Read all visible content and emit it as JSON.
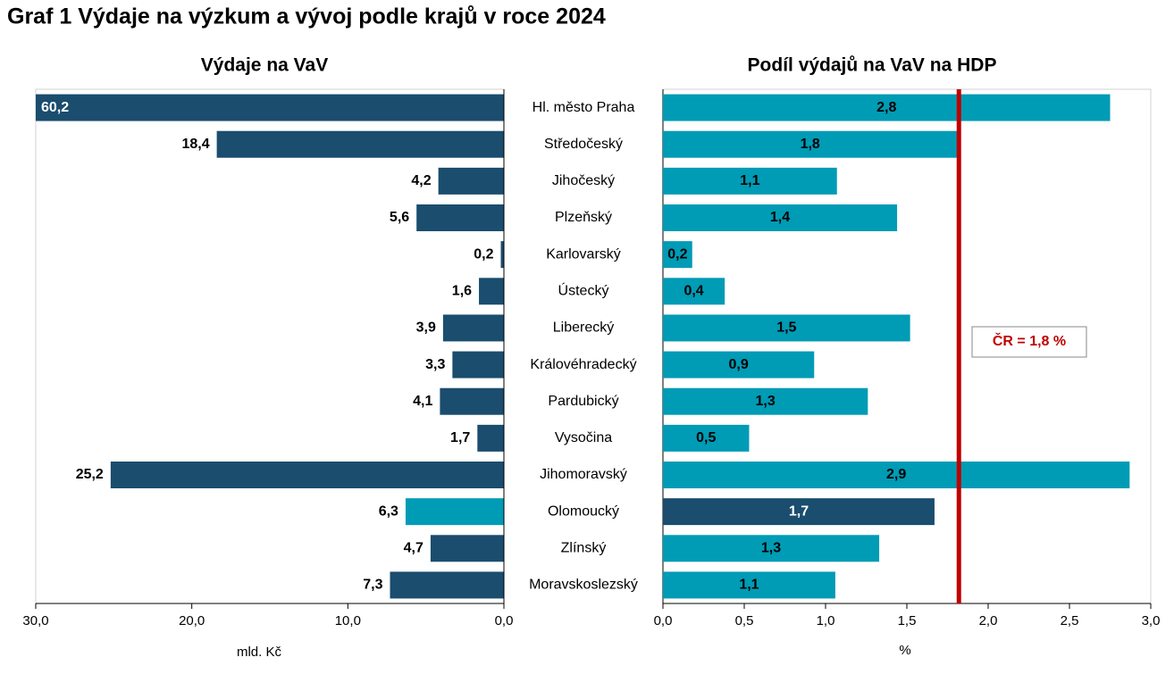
{
  "title": "Graf 1 Výdaje na výzkum a vývoj podle krajů v roce 2024",
  "chart_data": [
    {
      "type": "bar",
      "orientation": "horizontal",
      "reversed": true,
      "title": "Výdaje na VaV",
      "xlabel": "mld. Kč",
      "categories": [
        "Hl. město Praha",
        "Středočeský",
        "Jihočeský",
        "Plzeňský",
        "Karlovarský",
        "Ústecký",
        "Liberecký",
        "Královéhradecký",
        "Pardubický",
        "Vysočina",
        "Jihomoravský",
        "Olomoucký",
        "Zlínský",
        "Moravskoslezský"
      ],
      "values": [
        60.2,
        18.4,
        4.2,
        5.6,
        0.2,
        1.6,
        3.9,
        3.3,
        4.1,
        1.7,
        25.2,
        6.3,
        4.7,
        7.3
      ],
      "value_labels": [
        "60,2",
        "18,4",
        "4,2",
        "5,6",
        "0,2",
        "1,6",
        "3,9",
        "3,3",
        "4,1",
        "1,7",
        "25,2",
        "6,3",
        "4,7",
        "7,3"
      ],
      "colors": [
        "#1a4d6e",
        "#1a4d6e",
        "#1a4d6e",
        "#1a4d6e",
        "#1a4d6e",
        "#1a4d6e",
        "#1a4d6e",
        "#1a4d6e",
        "#1a4d6e",
        "#1a4d6e",
        "#1a4d6e",
        "#009bb5",
        "#1a4d6e",
        "#1a4d6e"
      ],
      "xlim": [
        0,
        30
      ],
      "xticks": [
        {
          "value": 30,
          "label": "30,0"
        },
        {
          "value": 20,
          "label": "20,0"
        },
        {
          "value": 10,
          "label": "10,0"
        },
        {
          "value": 0,
          "label": "0,0"
        }
      ]
    },
    {
      "type": "bar",
      "orientation": "horizontal",
      "title": "Podíl výdajů na VaV na HDP",
      "xlabel": "%",
      "values": [
        2.75,
        1.81,
        1.07,
        1.44,
        0.18,
        0.38,
        1.52,
        0.93,
        1.26,
        0.53,
        2.87,
        1.67,
        1.33,
        1.06
      ],
      "value_labels": [
        "2,8",
        "1,8",
        "1,1",
        "1,4",
        "0,2",
        "0,4",
        "1,5",
        "0,9",
        "1,3",
        "0,5",
        "2,9",
        "1,7",
        "1,3",
        "1,1"
      ],
      "colors": [
        "#009bb5",
        "#009bb5",
        "#009bb5",
        "#009bb5",
        "#009bb5",
        "#009bb5",
        "#009bb5",
        "#009bb5",
        "#009bb5",
        "#009bb5",
        "#009bb5",
        "#1a4d6e",
        "#009bb5",
        "#009bb5"
      ],
      "xlim": [
        0,
        3
      ],
      "xticks": [
        {
          "value": 0,
          "label": "0,0"
        },
        {
          "value": 0.5,
          "label": "0,5"
        },
        {
          "value": 1,
          "label": "1,0"
        },
        {
          "value": 1.5,
          "label": "1,5"
        },
        {
          "value": 2,
          "label": "2,0"
        },
        {
          "value": 2.5,
          "label": "2,5"
        },
        {
          "value": 3,
          "label": "3,0"
        }
      ],
      "reference_line": {
        "value": 1.82,
        "label": "ČR = 1,8 %",
        "color": "#c00000"
      }
    }
  ]
}
